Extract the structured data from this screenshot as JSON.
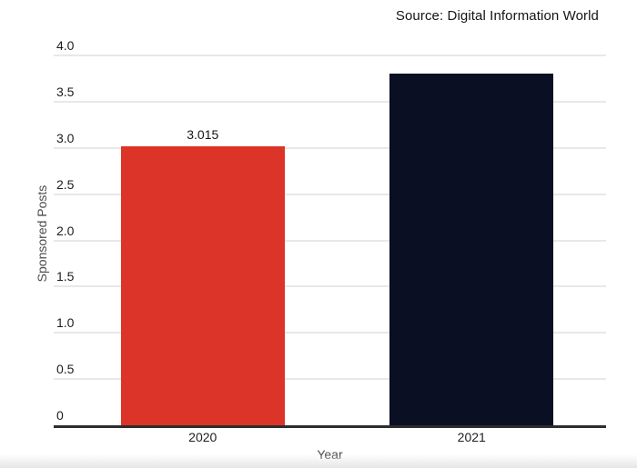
{
  "page": {
    "background": "#ffffff"
  },
  "chart_data": {
    "type": "bar",
    "source": "Source: Digital Information World",
    "title": "",
    "xlabel": "Year",
    "ylabel": "Sponsored Posts",
    "categories": [
      "2020",
      "2021"
    ],
    "values": [
      3.015,
      3.8
    ],
    "value_labels": [
      "3.015",
      ""
    ],
    "ylim": [
      0,
      4
    ],
    "yticks": [
      0,
      0.5,
      1,
      1.5,
      2,
      2.5,
      3,
      3.5,
      4
    ],
    "ytick_labels": [
      "0",
      "0.5",
      "1.0",
      "1.5",
      "2.0",
      "2.5",
      "3.0",
      "3.5",
      "4.0"
    ],
    "grid": true,
    "legend": "none",
    "colors": {
      "bars": [
        "#dc3428",
        "#0a0f23"
      ],
      "gridline": "#e8e8e8",
      "axis_line": "#2d2d2d",
      "tick_text": "#1c1c1c",
      "axis_title_text": "#4d4d4d",
      "value_label_text": "#141414"
    }
  }
}
